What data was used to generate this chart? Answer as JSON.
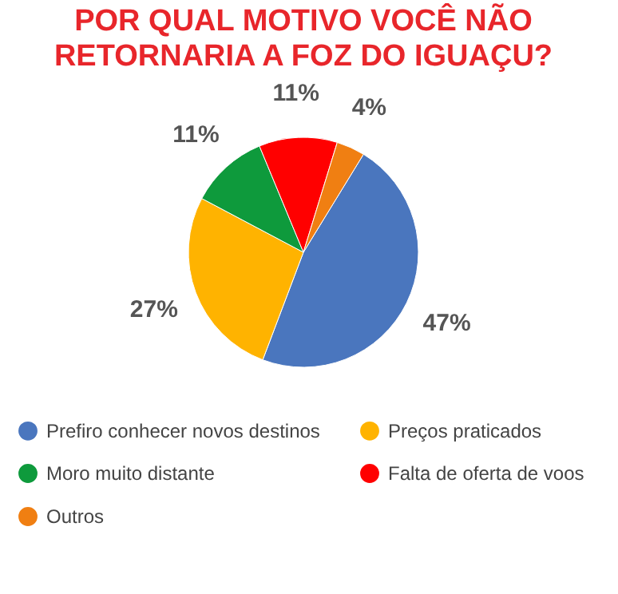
{
  "chart_data": {
    "type": "pie",
    "title": "POR QUAL MOTIVO VOCÊ NÃO RETORNARIA A FOZ DO IGUAÇU?",
    "categories": [
      "Prefiro conhecer novos destinos",
      "Preços praticados",
      "Moro muito distante",
      "Falta de oferta de voos",
      "Outros"
    ],
    "values": [
      47,
      27,
      11,
      11,
      4
    ],
    "colors": [
      "#4a76be",
      "#ffb300",
      "#0e9a3c",
      "#ff0000",
      "#f07f12"
    ],
    "value_labels": [
      "47%",
      "27%",
      "11%",
      "11%",
      "4%"
    ],
    "legend": "bottom"
  }
}
